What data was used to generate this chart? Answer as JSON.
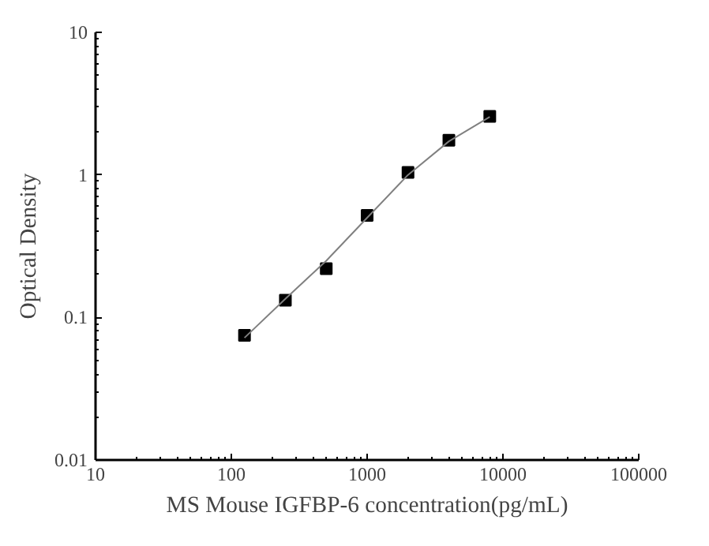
{
  "chart_data": {
    "type": "scatter",
    "xlabel": "MS Mouse IGFBP-6 concentration(pg/mL)",
    "ylabel": "Optical Density",
    "log": "xy",
    "xlim": [
      10,
      100000
    ],
    "ylim": [
      0.01,
      10
    ],
    "xticks": [
      10,
      100,
      1000,
      10000,
      100000
    ],
    "yticks": [
      0.01,
      0.1,
      1,
      10
    ],
    "grid": false,
    "series": [
      {
        "marker": "square",
        "color": "#000000",
        "x": [
          125,
          250,
          500,
          1000,
          2000,
          4000,
          8000
        ],
        "values": [
          0.075,
          0.132,
          0.22,
          0.52,
          1.04,
          1.75,
          2.57
        ]
      },
      {
        "type": "line",
        "marker": "none",
        "color": "#808080",
        "x": [
          125,
          250,
          500,
          1000,
          2000,
          4000,
          8000
        ],
        "values": [
          0.072,
          0.135,
          0.25,
          0.5,
          1.0,
          1.72,
          2.55
        ]
      }
    ]
  }
}
